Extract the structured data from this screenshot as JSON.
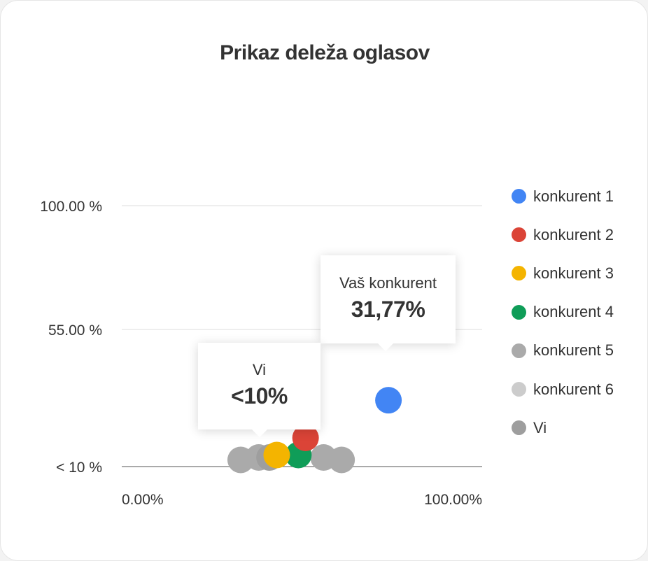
{
  "title": "Prikaz deleža oglasov",
  "chart_data": {
    "type": "scatter",
    "title": "Prikaz deleža oglasov",
    "xlabel": "",
    "ylabel": "",
    "x_ticks": [
      "0.00%",
      "100.00%"
    ],
    "y_ticks": [
      "< 10 %",
      "55.00 %",
      "100.00 %"
    ],
    "xlim": [
      0,
      100
    ],
    "grid": true,
    "legend_position": "right",
    "series": [
      {
        "name": "konkurent 1",
        "color": "#4285f4",
        "points": [
          {
            "x": 74,
            "y": 31.77
          }
        ]
      },
      {
        "name": "konkurent 2",
        "color": "#db4437",
        "points": [
          {
            "x": 51,
            "y": 10
          }
        ]
      },
      {
        "name": "konkurent 3",
        "color": "#f4b400",
        "points": [
          {
            "x": 43,
            "y": 3
          }
        ]
      },
      {
        "name": "konkurent 4",
        "color": "#0f9d58",
        "points": [
          {
            "x": 49,
            "y": 3
          }
        ]
      },
      {
        "name": "konkurent 5",
        "color": "#aaaaaa",
        "points": [
          {
            "x": 33,
            "y": 1
          },
          {
            "x": 38,
            "y": 2
          },
          {
            "x": 56,
            "y": 2
          },
          {
            "x": 61,
            "y": 1
          }
        ]
      },
      {
        "name": "konkurent 6",
        "color": "#cccccc",
        "points": []
      },
      {
        "name": "Vi",
        "color": "#9e9e9e",
        "points": [
          {
            "x": 41,
            "y": 2
          }
        ]
      }
    ]
  },
  "callouts": {
    "competitor": {
      "label": "Vaš konkurent",
      "value": "31,77%"
    },
    "you": {
      "label": "Vi",
      "value": "<10%"
    }
  }
}
